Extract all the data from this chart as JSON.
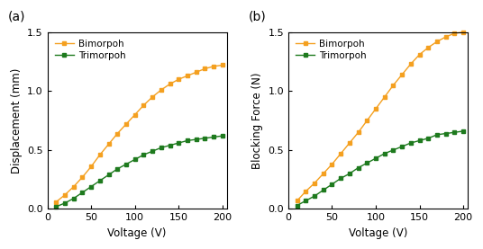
{
  "voltage": [
    10,
    20,
    30,
    40,
    50,
    60,
    70,
    80,
    90,
    100,
    110,
    120,
    130,
    140,
    150,
    160,
    170,
    180,
    190,
    200
  ],
  "bimorph_displacement": [
    0.06,
    0.12,
    0.19,
    0.27,
    0.36,
    0.46,
    0.55,
    0.64,
    0.72,
    0.8,
    0.88,
    0.95,
    1.01,
    1.06,
    1.1,
    1.13,
    1.16,
    1.19,
    1.21,
    1.22
  ],
  "trimorph_displacement": [
    0.02,
    0.05,
    0.09,
    0.14,
    0.19,
    0.24,
    0.29,
    0.34,
    0.38,
    0.42,
    0.46,
    0.49,
    0.52,
    0.54,
    0.56,
    0.58,
    0.59,
    0.6,
    0.61,
    0.62
  ],
  "bimorph_force": [
    0.07,
    0.15,
    0.22,
    0.3,
    0.38,
    0.47,
    0.56,
    0.65,
    0.75,
    0.85,
    0.95,
    1.05,
    1.14,
    1.23,
    1.31,
    1.37,
    1.42,
    1.46,
    1.49,
    1.5
  ],
  "trimorph_force": [
    0.03,
    0.07,
    0.11,
    0.16,
    0.21,
    0.26,
    0.3,
    0.35,
    0.39,
    0.43,
    0.47,
    0.5,
    0.53,
    0.56,
    0.58,
    0.6,
    0.63,
    0.64,
    0.65,
    0.66
  ],
  "bimorph_color": "#F4A020",
  "trimorph_color": "#1E7A1E",
  "bimorph_label": "Bimorpoh",
  "trimorph_label": "Trimorpoh",
  "xlabel": "Voltage (V)",
  "ylabel_a": "Displacement (mm)",
  "ylabel_b": "Blocking Force (N)",
  "label_a": "(a)",
  "label_b": "(b)",
  "xlim": [
    0,
    205
  ],
  "ylim": [
    0,
    1.5
  ],
  "xticks": [
    0,
    50,
    100,
    150,
    200
  ],
  "yticks": [
    0.0,
    0.5,
    1.0,
    1.5
  ],
  "marker": "s",
  "markersize": 3.5,
  "linewidth": 1.0,
  "background_color": "#ffffff"
}
